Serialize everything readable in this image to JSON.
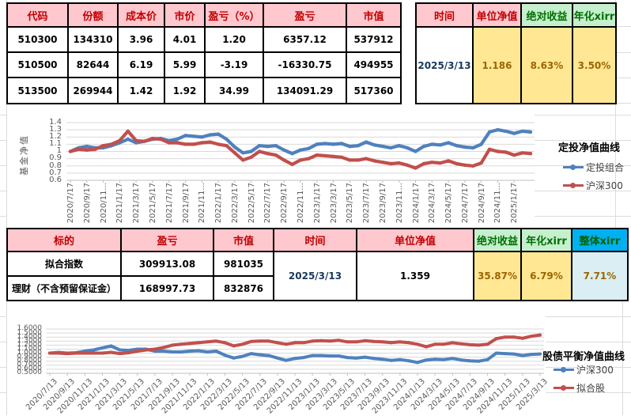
{
  "colors": {
    "header_pink_bg": "#FFC7CE",
    "header_pink_text": "#C00000",
    "header_green_bg": "#C6EFCE",
    "header_green_text": "#007000",
    "header_cyan_bg": "#00B0F0",
    "value_yellow_bg": "#FFE794",
    "value_yellow_text": "#9C6500",
    "value_lightblue_bg": "#DAEEF3",
    "date_text": "#17375E",
    "series_blue": "#4F81BD",
    "series_red": "#C0504D"
  },
  "tables": {
    "holdings": {
      "headers": [
        "代码",
        "份额",
        "成本价",
        "市价",
        "盈亏（%）",
        "盈亏",
        "市值"
      ],
      "rows": [
        [
          "510300",
          "134310",
          "3.96",
          "4.01",
          "1.20",
          "6357.12",
          "537912"
        ],
        [
          "510500",
          "82644",
          "6.19",
          "5.99",
          "-3.19",
          "-16330.75",
          "494955"
        ],
        [
          "513500",
          "269944",
          "1.42",
          "1.92",
          "34.99",
          "134091.29",
          "517360"
        ]
      ]
    },
    "holdings_summary": {
      "headers": [
        "时间",
        "单位净值",
        "绝对收益",
        "年化xirr"
      ],
      "time": "2025/3/13",
      "unit_nav": "1.186",
      "abs_return": "8.63%",
      "annual_xirr": "3.50%"
    },
    "balance": {
      "headers": [
        "标的",
        "盈亏",
        "市值",
        "时间",
        "单位净值",
        "绝对收益",
        "年化xirr",
        "整体xirr"
      ],
      "rows": [
        [
          "拟合指数",
          "309913.08",
          "981035"
        ],
        [
          "理财（不含预留保证金）",
          "168997.73",
          "832876"
        ]
      ],
      "time": "2025/3/13",
      "unit_nav": "1.359",
      "abs_return": "35.87%",
      "annual_xirr": "6.79%",
      "overall_xirr": "7.71%"
    }
  },
  "chart_data": [
    {
      "type": "line",
      "title": "定投净值曲线",
      "ylabel": "基金净值",
      "ylim": [
        0.6,
        1.4
      ],
      "grid": true,
      "legend_position": "right",
      "ytick_labels": [
        "1.4",
        "1.3",
        "1.2",
        "1.1",
        "1",
        "0.9",
        "0.8",
        "0.7",
        "0.6"
      ],
      "xtick_labels": [
        "2020/7/17",
        "2020/9/17",
        "2020/11...",
        "2021/1/17",
        "2021/3/17",
        "2021/5/17",
        "2021/7/17",
        "2021/9/17",
        "2021/11...",
        "2022/1/17",
        "2022/3/17",
        "2022/5/17",
        "2022/7/17",
        "2022/9/17",
        "2022/11...",
        "2023/1/17",
        "2023/3/17",
        "2023/5/17",
        "2023/7/17",
        "2023/9/17",
        "2023/11...",
        "2024/1/17",
        "2024/3/17",
        "2024/5/17",
        "2024/7/17",
        "2024/9/17",
        "2024/11...",
        "2025/1/17"
      ],
      "x_note": "monthly samples 2020/7 - 2025/3",
      "series": [
        {
          "name": "定投组合",
          "color": "#4F81BD",
          "values": [
            1.0,
            1.05,
            1.07,
            1.05,
            1.05,
            1.08,
            1.12,
            1.17,
            1.12,
            1.14,
            1.17,
            1.18,
            1.15,
            1.17,
            1.22,
            1.21,
            1.2,
            1.23,
            1.24,
            1.17,
            1.06,
            0.98,
            1.0,
            1.08,
            1.07,
            1.08,
            1.02,
            0.97,
            1.02,
            1.04,
            1.1,
            1.11,
            1.1,
            1.11,
            1.07,
            1.08,
            1.13,
            1.09,
            1.07,
            1.05,
            1.08,
            1.05,
            1.0,
            1.07,
            1.1,
            1.09,
            1.12,
            1.08,
            1.06,
            1.05,
            1.1,
            1.27,
            1.3,
            1.28,
            1.25,
            1.28,
            1.27
          ]
        },
        {
          "name": "沪深300",
          "color": "#C0504D",
          "values": [
            1.0,
            1.03,
            1.02,
            1.03,
            1.08,
            1.1,
            1.15,
            1.28,
            1.15,
            1.14,
            1.18,
            1.17,
            1.12,
            1.12,
            1.1,
            1.1,
            1.12,
            1.13,
            1.1,
            1.08,
            0.98,
            0.88,
            0.92,
            1.0,
            0.97,
            0.95,
            0.88,
            0.82,
            0.88,
            0.9,
            0.95,
            0.94,
            0.93,
            0.92,
            0.88,
            0.88,
            0.9,
            0.87,
            0.85,
            0.83,
            0.84,
            0.81,
            0.77,
            0.83,
            0.85,
            0.84,
            0.87,
            0.83,
            0.81,
            0.8,
            0.84,
            1.03,
            1.0,
            0.99,
            0.95,
            0.98,
            0.97
          ]
        }
      ]
    },
    {
      "type": "line",
      "title": "股债平衡净值曲线",
      "ylabel": "",
      "ylim": [
        0.5,
        1.6
      ],
      "grid": true,
      "legend_position": "right",
      "ytick_labels": [
        "1.6000",
        "1.5000",
        "1.4000",
        "1.3000",
        "1.2000",
        "1.1000",
        "1.0000",
        "0.9000",
        "0.8000",
        "0.7000",
        "0.6000",
        "0.5000"
      ],
      "xtick_labels": [
        "2020/7/13",
        "2020/9/13",
        "2020/11/13",
        "2021/1/13",
        "2021/3/13",
        "2021/5/13",
        "2021/7/13",
        "2021/9/13",
        "2021/11/13",
        "2022/1/13",
        "2022/3/13",
        "2022/5/13",
        "2022/7/13",
        "2022/9/13",
        "2022/11/13",
        "2023/1/13",
        "2023/3/13",
        "2023/5/13",
        "2023/7/13",
        "2023/9/13",
        "2023/11/13",
        "2024/1/13",
        "2024/3/13",
        "2024/5/13",
        "2024/7/13",
        "2024/9/13",
        "2024/11/13",
        "2025/1/13",
        "2025/3/13"
      ],
      "x_note": "monthly samples 2020/7 - 2025/3",
      "series": [
        {
          "name": "沪深300",
          "color": "#4F81BD",
          "values": [
            1.0,
            1.02,
            1.0,
            1.01,
            1.05,
            1.08,
            1.13,
            1.18,
            1.08,
            1.07,
            1.1,
            1.1,
            1.05,
            1.05,
            1.03,
            1.03,
            1.05,
            1.06,
            1.03,
            1.05,
            0.95,
            0.88,
            0.92,
            0.99,
            0.96,
            0.94,
            0.88,
            0.82,
            0.87,
            0.89,
            0.94,
            0.94,
            0.93,
            0.93,
            0.89,
            0.88,
            0.9,
            0.87,
            0.85,
            0.82,
            0.84,
            0.81,
            0.77,
            0.83,
            0.85,
            0.84,
            0.87,
            0.83,
            0.81,
            0.8,
            0.84,
            1.0,
            0.99,
            0.98,
            0.94,
            0.97,
            0.98
          ]
        },
        {
          "name": "拟合股",
          "color": "#C0504D",
          "values": [
            1.0,
            1.0,
            0.99,
            1.0,
            1.0,
            1.0,
            1.0,
            1.02,
            0.99,
            1.01,
            1.05,
            1.08,
            1.1,
            1.14,
            1.2,
            1.22,
            1.24,
            1.26,
            1.28,
            1.3,
            1.26,
            1.18,
            1.22,
            1.29,
            1.3,
            1.3,
            1.26,
            1.22,
            1.26,
            1.26,
            1.3,
            1.31,
            1.3,
            1.32,
            1.28,
            1.28,
            1.31,
            1.29,
            1.28,
            1.26,
            1.28,
            1.26,
            1.22,
            1.16,
            1.22,
            1.22,
            1.26,
            1.23,
            1.21,
            1.2,
            1.22,
            1.36,
            1.4,
            1.4,
            1.37,
            1.42,
            1.45
          ]
        }
      ]
    }
  ]
}
